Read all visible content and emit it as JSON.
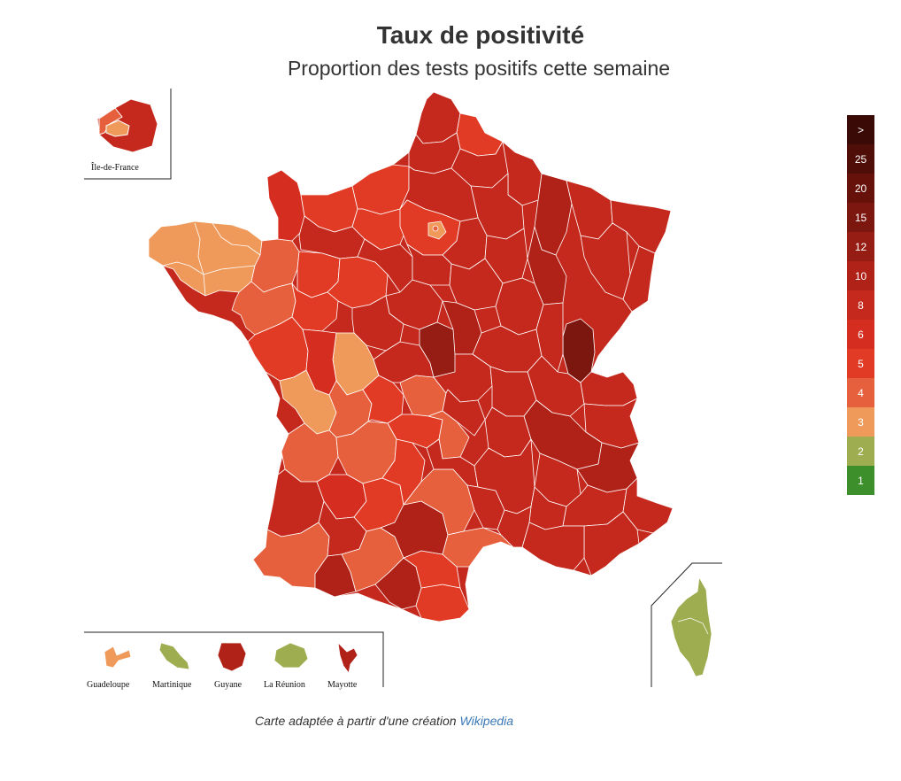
{
  "header": {
    "title": "Taux de positivité",
    "subtitle": "Proportion des tests positifs cette semaine"
  },
  "legend": {
    "items": [
      {
        "label": ">",
        "color": "#3a0a06"
      },
      {
        "label": "25",
        "color": "#4f0e08"
      },
      {
        "label": "20",
        "color": "#66120b"
      },
      {
        "label": "15",
        "color": "#7c170f"
      },
      {
        "label": "12",
        "color": "#961d13"
      },
      {
        "label": "10",
        "color": "#b02218"
      },
      {
        "label": "8",
        "color": "#c5281c"
      },
      {
        "label": "6",
        "color": "#d52d1f"
      },
      {
        "label": "5",
        "color": "#e23b25"
      },
      {
        "label": "4",
        "color": "#e6603e"
      },
      {
        "label": "3",
        "color": "#ef9a5b"
      },
      {
        "label": "2",
        "color": "#9dad4f"
      },
      {
        "label": "1",
        "color": "#3c8f2b"
      }
    ]
  },
  "insets": {
    "idf_label": "Île-de-France",
    "dom": [
      {
        "label": "Guadeloupe",
        "color": "#ef9a5b"
      },
      {
        "label": "Martinique",
        "color": "#9dad4f"
      },
      {
        "label": "Guyane",
        "color": "#b02218"
      },
      {
        "label": "La Réunion",
        "color": "#9dad4f"
      },
      {
        "label": "Mayotte",
        "color": "#b02218"
      }
    ],
    "corse_color": "#9dad4f"
  },
  "map_colors": {
    "base": "#c5281c",
    "bright": "#e23b25",
    "orange": "#e6603e",
    "light": "#ef9a5b",
    "dark": "#961d13",
    "darkest": "#7c170f"
  },
  "footer": {
    "credit_text": "Carte adaptée à partir d'une création",
    "credit_link": "Wikipedia"
  }
}
